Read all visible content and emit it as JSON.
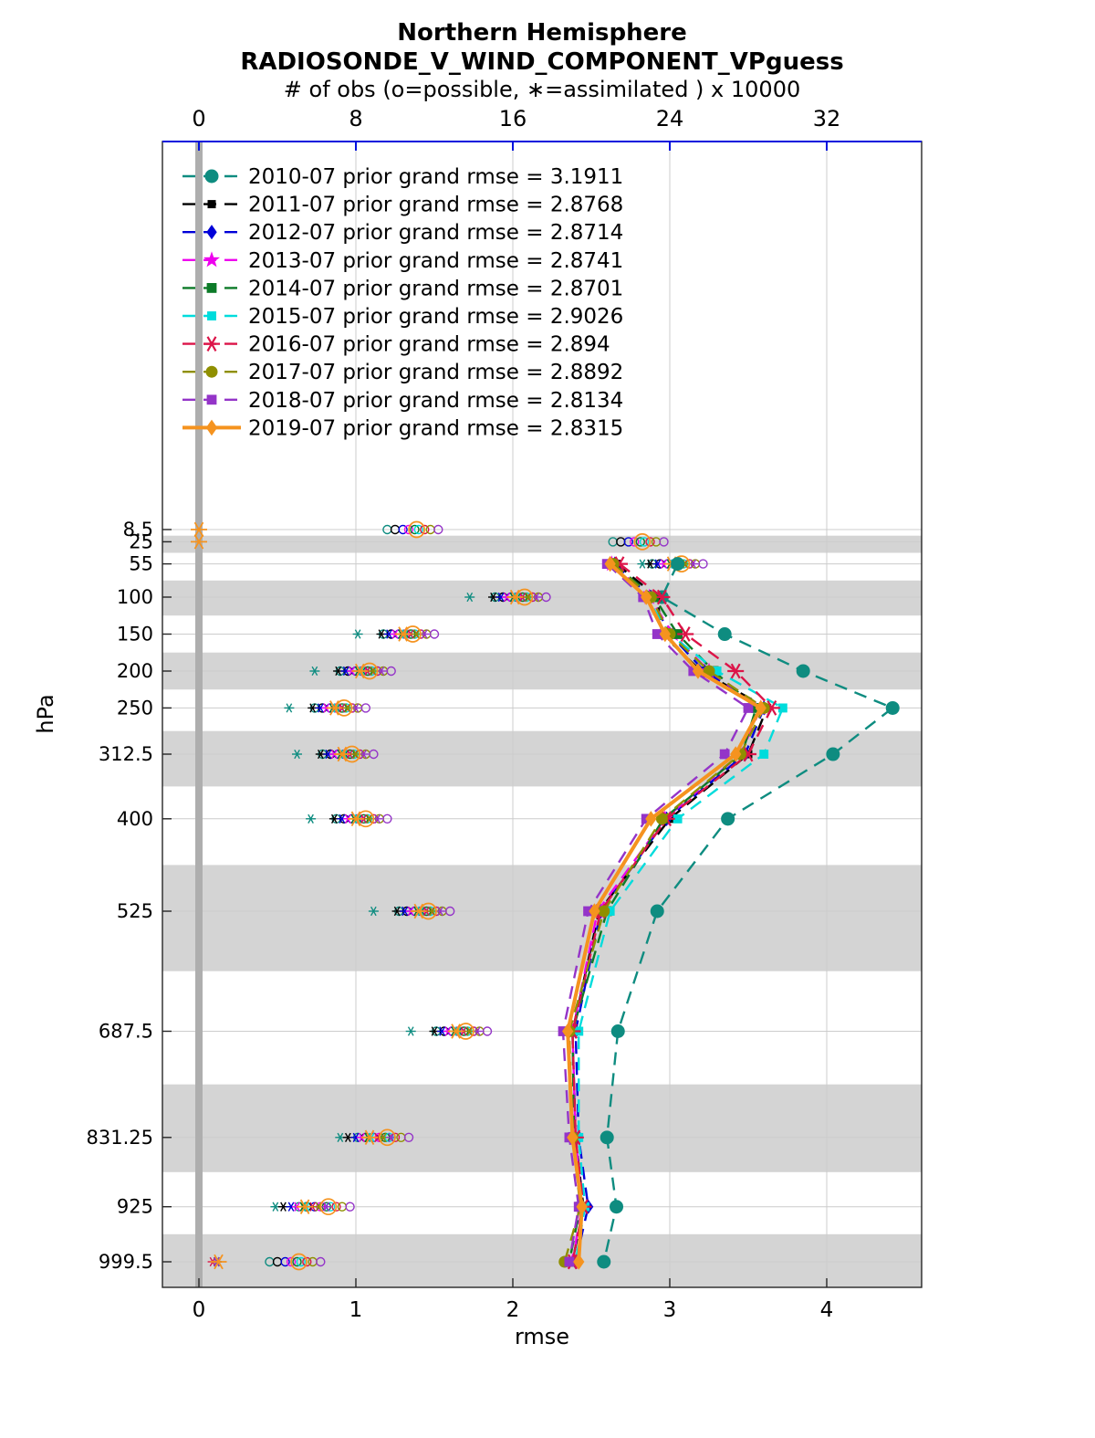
{
  "figure": {
    "title_line1": "Northern Hemisphere",
    "title_line2": "RADIOSONDE_V_WIND_COMPONENT_VPguess",
    "obs_axis_title": "# of obs (o=possible, ∗=assimilated ) x 10000",
    "xlabel": "rmse",
    "ylabel": "hPa"
  },
  "colors": {
    "axis_blue": "#0010dd",
    "band_gray": "#d4d4d4",
    "zero_bar_gray": "#aeaeae",
    "grid_gray": "#cccccc",
    "axis_black": "#262626"
  },
  "chart_data": {
    "type": "line",
    "title": "Northern Hemisphere",
    "subtitle": "RADIOSONDE_V_WIND_COMPONENT_VPguess",
    "top_axis_label": "# of obs (o=possible, ∗=assimilated ) x 10000",
    "xlabel": "rmse",
    "ylabel": "hPa",
    "x_ticks_rmse": [
      0,
      1,
      2,
      3,
      4
    ],
    "x_ticks_obs": [
      0,
      8,
      16,
      24,
      32
    ],
    "xlim_rmse": [
      -0.23,
      4.6
    ],
    "obs_units": "x 10000",
    "grid": true,
    "legend_position": "top-left-inside",
    "pressure_levels": [
      8.5,
      25,
      55,
      100,
      150,
      200,
      250,
      312.5,
      400,
      525,
      687.5,
      831.25,
      925,
      999.5
    ],
    "banded_levels": [
      25,
      100,
      200,
      312.5,
      525,
      831.25,
      999.5
    ],
    "series": [
      {
        "name": "2010-07",
        "label": "2010-07 prior grand rmse = 3.1911",
        "grand_rmse": 3.1911,
        "color": "#0e8c80",
        "line_style": "dashed",
        "marker": "circle",
        "marker_size": 7.5,
        "rmse": [
          null,
          null,
          3.05,
          2.95,
          3.35,
          3.85,
          4.42,
          4.04,
          3.37,
          2.92,
          2.67,
          2.6,
          2.66,
          2.58
        ],
        "obs_possible": [
          9.6,
          21.1,
          23.1,
          15.1,
          9.4,
          7.2,
          5.9,
          6.3,
          7.0,
          10.2,
          12.1,
          8.1,
          5.1,
          3.6
        ],
        "obs_assimilated": [
          null,
          null,
          22.6,
          13.8,
          8.1,
          5.9,
          4.6,
          5.0,
          5.7,
          8.9,
          10.8,
          7.2,
          3.9,
          0.9
        ]
      },
      {
        "name": "2011-07",
        "label": "2011-07 prior grand rmse = 2.8768",
        "grand_rmse": 2.8768,
        "color": "#000000",
        "line_style": "dashed",
        "marker": "square",
        "marker_size": 5,
        "rmse": [
          null,
          null,
          2.66,
          2.92,
          2.95,
          3.2,
          3.62,
          3.5,
          3.0,
          2.55,
          2.38,
          2.4,
          2.45,
          2.38
        ],
        "obs_possible": [
          10.0,
          21.5,
          23.5,
          15.5,
          9.8,
          7.6,
          6.3,
          6.7,
          7.4,
          10.6,
          12.5,
          8.5,
          5.5,
          4.0
        ],
        "obs_assimilated": [
          null,
          null,
          23.0,
          15.0,
          9.3,
          7.1,
          5.8,
          6.2,
          6.9,
          10.1,
          12.0,
          7.6,
          4.3,
          0.9
        ]
      },
      {
        "name": "2012-07",
        "label": "2012-07 prior grand rmse = 2.8714",
        "grand_rmse": 2.8714,
        "color": "#0000d8",
        "line_style": "dashed",
        "marker": "diamond",
        "marker_size": 6,
        "rmse": [
          null,
          null,
          2.65,
          2.88,
          3.0,
          3.22,
          3.6,
          3.48,
          2.98,
          2.56,
          2.4,
          2.42,
          2.48,
          2.4
        ],
        "obs_possible": [
          10.4,
          21.9,
          23.9,
          15.9,
          10.2,
          8.0,
          6.7,
          7.1,
          7.8,
          11.0,
          12.9,
          8.9,
          5.9,
          4.4
        ],
        "obs_assimilated": [
          null,
          null,
          23.4,
          15.4,
          9.7,
          7.5,
          6.2,
          6.6,
          7.3,
          10.5,
          12.4,
          8.0,
          4.7,
          0.9
        ]
      },
      {
        "name": "2013-07",
        "label": "2013-07 prior grand rmse = 2.8741",
        "grand_rmse": 2.8741,
        "color": "#ee00ee",
        "line_style": "dashed",
        "marker": "pentagram",
        "marker_size": 6.5,
        "rmse": [
          null,
          null,
          2.63,
          2.87,
          3.02,
          3.25,
          3.58,
          3.45,
          2.97,
          2.54,
          2.38,
          2.4,
          2.44,
          2.38
        ],
        "obs_possible": [
          10.7,
          22.2,
          24.2,
          16.2,
          10.5,
          8.3,
          7.0,
          7.4,
          8.1,
          11.3,
          13.2,
          9.2,
          6.2,
          4.7
        ],
        "obs_assimilated": [
          null,
          null,
          23.7,
          15.7,
          10.0,
          7.8,
          6.5,
          6.9,
          7.6,
          10.8,
          12.7,
          8.3,
          5.0,
          0.9
        ]
      },
      {
        "name": "2014-07",
        "label": "2014-07 prior grand rmse = 2.8701",
        "grand_rmse": 2.8701,
        "color": "#0c7a28",
        "line_style": "dashed",
        "marker": "square",
        "marker_size": 6,
        "rmse": [
          null,
          null,
          2.64,
          2.9,
          3.05,
          3.28,
          3.55,
          3.46,
          2.96,
          2.6,
          2.38,
          2.39,
          2.43,
          2.36
        ],
        "obs_possible": [
          11.0,
          22.5,
          24.5,
          16.5,
          10.8,
          8.6,
          7.3,
          7.7,
          8.4,
          11.6,
          13.5,
          9.5,
          6.5,
          5.0
        ],
        "obs_assimilated": [
          null,
          null,
          24.0,
          16.0,
          10.3,
          8.1,
          6.8,
          7.2,
          7.9,
          11.1,
          13.0,
          8.6,
          5.3,
          0.9
        ]
      },
      {
        "name": "2015-07",
        "label": "2015-07 prior grand rmse = 2.9026",
        "grand_rmse": 2.9026,
        "color": "#00dcdc",
        "line_style": "dashed",
        "marker": "square",
        "marker_size": 5.5,
        "rmse": [
          null,
          null,
          2.62,
          2.85,
          3.0,
          3.3,
          3.72,
          3.6,
          3.05,
          2.62,
          2.42,
          2.42,
          2.46,
          2.4
        ],
        "obs_possible": [
          11.2,
          22.7,
          24.7,
          16.7,
          11.0,
          8.8,
          7.5,
          7.9,
          8.6,
          11.8,
          13.7,
          9.7,
          6.7,
          5.2
        ],
        "obs_assimilated": [
          null,
          null,
          24.2,
          16.2,
          10.5,
          8.3,
          7.0,
          7.4,
          8.1,
          11.3,
          13.2,
          8.8,
          5.5,
          0.9
        ]
      },
      {
        "name": "2016-07",
        "label": "2016-07 prior grand rmse = 2.894",
        "grand_rmse": 2.894,
        "color": "#dc1448",
        "line_style": "dashed",
        "marker": "asterisk",
        "marker_size": 6,
        "rmse": [
          null,
          null,
          2.68,
          2.95,
          3.1,
          3.42,
          3.65,
          3.5,
          2.98,
          2.56,
          2.38,
          2.4,
          2.45,
          2.38
        ],
        "obs_possible": [
          11.5,
          23.0,
          25.0,
          17.0,
          11.3,
          9.1,
          7.8,
          8.2,
          8.9,
          12.1,
          14.0,
          10.0,
          7.0,
          5.5
        ],
        "obs_assimilated": [
          null,
          null,
          24.5,
          16.5,
          10.8,
          8.6,
          7.3,
          7.7,
          8.4,
          11.6,
          13.5,
          9.1,
          5.8,
          0.7
        ]
      },
      {
        "name": "2017-07",
        "label": "2017-07 prior grand rmse = 2.8892",
        "grand_rmse": 2.8892,
        "color": "#8f8f00",
        "line_style": "dashed",
        "marker": "circle",
        "marker_size": 6.5,
        "rmse": [
          null,
          null,
          2.64,
          2.88,
          3.0,
          3.25,
          3.6,
          3.45,
          2.95,
          2.58,
          2.36,
          2.38,
          2.43,
          2.33
        ],
        "obs_possible": [
          11.8,
          23.3,
          25.3,
          17.3,
          11.6,
          9.4,
          8.1,
          8.5,
          9.2,
          12.4,
          14.3,
          10.3,
          7.3,
          5.8
        ],
        "obs_assimilated": [
          null,
          null,
          24.8,
          16.8,
          11.1,
          8.9,
          7.6,
          8.0,
          8.7,
          11.9,
          13.8,
          9.4,
          6.1,
          0.9
        ]
      },
      {
        "name": "2018-07",
        "label": "2018-07 prior grand rmse = 2.8134",
        "grand_rmse": 2.8134,
        "color": "#9434c8",
        "line_style": "dashed",
        "marker": "square",
        "marker_size": 6,
        "rmse": [
          null,
          null,
          2.6,
          2.83,
          2.92,
          3.15,
          3.5,
          3.35,
          2.85,
          2.48,
          2.32,
          2.36,
          2.42,
          2.36
        ],
        "obs_possible": [
          12.2,
          23.7,
          25.7,
          17.7,
          12.0,
          9.8,
          8.5,
          8.9,
          9.6,
          12.8,
          14.7,
          10.7,
          7.7,
          6.2
        ],
        "obs_assimilated": [
          null,
          null,
          25.2,
          17.2,
          11.5,
          9.3,
          8.0,
          8.4,
          9.1,
          12.3,
          14.2,
          9.8,
          6.5,
          0.9
        ]
      },
      {
        "name": "2019-07",
        "label": "2019-07 prior grand rmse = 2.8315",
        "grand_rmse": 2.8315,
        "color": "#f5931f",
        "line_style": "solid",
        "marker": "diamond",
        "marker_size": 6.5,
        "rmse": [
          null,
          null,
          2.62,
          2.85,
          2.97,
          3.18,
          3.58,
          3.42,
          2.88,
          2.52,
          2.35,
          2.38,
          2.44,
          2.42
        ],
        "obs_possible": [
          11.1,
          22.6,
          24.6,
          16.6,
          10.9,
          8.7,
          7.4,
          7.8,
          8.5,
          11.7,
          13.6,
          9.6,
          6.6,
          5.1
        ],
        "obs_assimilated": [
          0.0,
          0.0,
          24.1,
          16.1,
          10.4,
          8.2,
          6.9,
          7.3,
          8.0,
          11.2,
          13.1,
          8.7,
          5.4,
          1.0
        ]
      }
    ]
  }
}
